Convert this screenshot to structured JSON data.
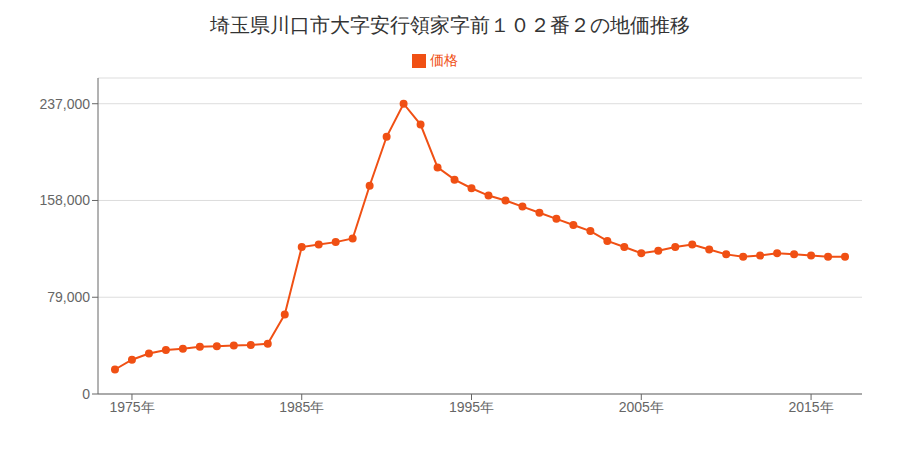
{
  "chart_data": {
    "type": "line",
    "title": "埼玉県川口市大字安行領家字前１０２番２の地価推移",
    "x": [
      1974,
      1975,
      1976,
      1977,
      1978,
      1979,
      1980,
      1981,
      1982,
      1983,
      1984,
      1985,
      1986,
      1987,
      1988,
      1989,
      1990,
      1991,
      1992,
      1993,
      1994,
      1995,
      1996,
      1997,
      1998,
      1999,
      2000,
      2001,
      2002,
      2003,
      2004,
      2005,
      2006,
      2007,
      2008,
      2009,
      2010,
      2011,
      2012,
      2013,
      2014,
      2015,
      2016,
      2017
    ],
    "series": [
      {
        "name": "価格",
        "color": "#f05014",
        "marker": "circle",
        "values": [
          20000,
          28000,
          33000,
          36000,
          37000,
          38500,
          39000,
          39500,
          40000,
          41000,
          65000,
          120000,
          122000,
          124000,
          127000,
          170000,
          210000,
          237000,
          220000,
          185000,
          175000,
          168000,
          162000,
          158000,
          153000,
          148000,
          143000,
          138000,
          133000,
          125000,
          120000,
          115000,
          117000,
          120000,
          122000,
          118000,
          114000,
          112000,
          113000,
          115000,
          114000,
          113000,
          112000,
          112000
        ]
      }
    ],
    "xlim": [
      1973,
      2018
    ],
    "xticks": [
      {
        "value": 1975,
        "label": "1975年"
      },
      {
        "value": 1985,
        "label": "1985年"
      },
      {
        "value": 1995,
        "label": "1995年"
      },
      {
        "value": 2005,
        "label": "2005年"
      },
      {
        "value": 2015,
        "label": "2015年"
      }
    ],
    "ylim": [
      0,
      258000
    ],
    "yticks": [
      0,
      {
        "value": 79000,
        "label": "79,000"
      },
      {
        "value": 158000,
        "label": "158,000"
      },
      {
        "value": 237000,
        "label": "237,000"
      }
    ],
    "grid": true,
    "legend": "top"
  }
}
